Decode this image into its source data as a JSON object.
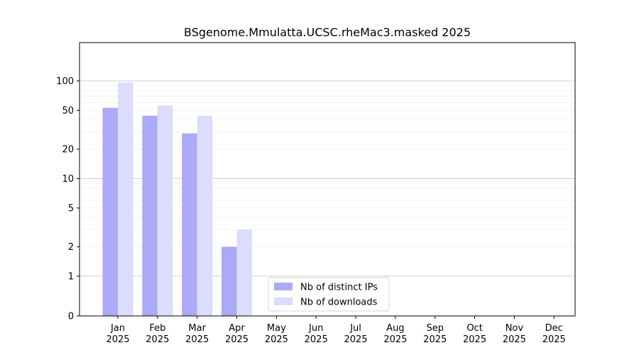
{
  "chart_data": {
    "type": "bar",
    "title": "BSgenome.Mmulatta.UCSC.rheMac3.masked 2025",
    "categories": [
      "Jan\n2025",
      "Feb\n2025",
      "Mar\n2025",
      "Apr\n2025",
      "May\n2025",
      "Jun\n2025",
      "Jul\n2025",
      "Aug\n2025",
      "Sep\n2025",
      "Oct\n2025",
      "Nov\n2025",
      "Dec\n2025"
    ],
    "series": [
      {
        "name": "Nb of distinct IPs",
        "color": "#aaaaf8",
        "values": [
          53,
          44,
          29,
          2,
          0,
          0,
          0,
          0,
          0,
          0,
          0,
          0
        ]
      },
      {
        "name": "Nb of downloads",
        "color": "#dcdcfc",
        "values": [
          96,
          56,
          44,
          3,
          0,
          0,
          0,
          0,
          0,
          0,
          0,
          0
        ]
      }
    ],
    "yscale": "symlog",
    "ylim": [
      0,
      120
    ],
    "yticks": [
      0,
      1,
      2,
      5,
      10,
      20,
      50,
      100
    ],
    "grid": true,
    "legend_position": "bottom-center"
  }
}
